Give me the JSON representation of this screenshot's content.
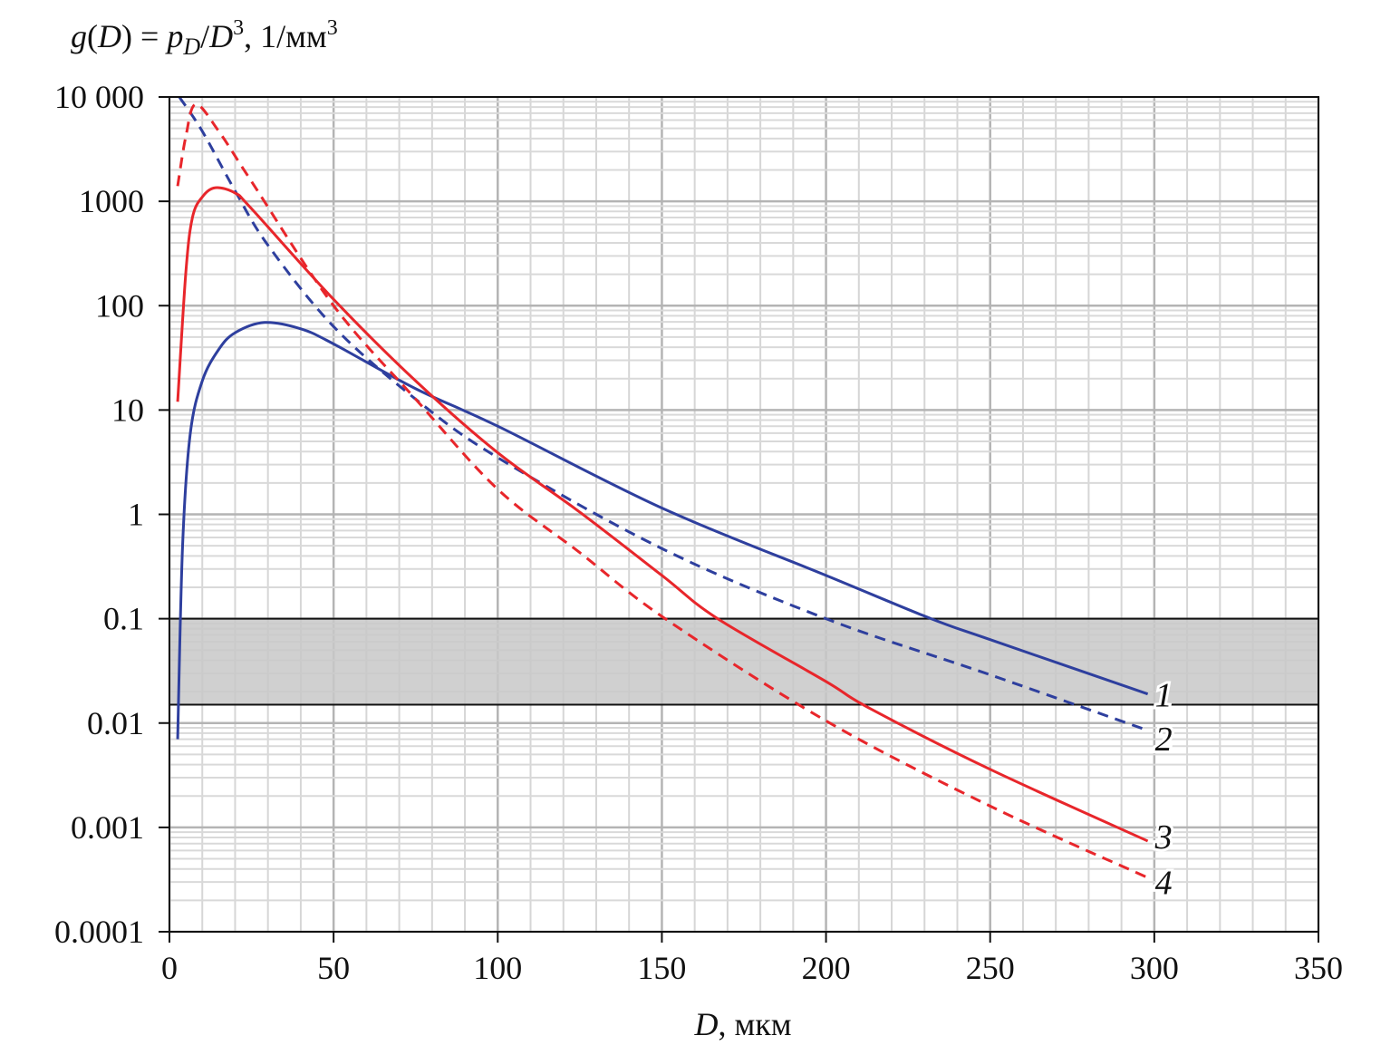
{
  "chart_data": {
    "type": "line",
    "title": "",
    "ylabel": "g(D) = p_D/D^3, 1/мм^3",
    "ylabel_parts": {
      "g": "g",
      "open": "(",
      "D": "D",
      "close": ")",
      "eq": " = ",
      "p": "p",
      "sub": "D",
      "slash": "/",
      "D2": "D",
      "sup": "3",
      "unit": ", 1/мм",
      "unit_sup": "3"
    },
    "xlabel": "D, мкм",
    "xlabel_parts": {
      "var": "D",
      "unit": ", мкм"
    },
    "xlim": [
      0,
      350
    ],
    "ylim": [
      0.0001,
      10000
    ],
    "yscale": "log",
    "grid": true,
    "x_ticks": [
      "0",
      "50",
      "100",
      "150",
      "200",
      "250",
      "300",
      "350"
    ],
    "y_ticks": [
      "0.0001",
      "0.001",
      "0.01",
      "0.1",
      "1",
      "10",
      "100",
      "1000",
      "10 000"
    ],
    "shaded_band": {
      "y_min": 0.015,
      "y_max": 0.1,
      "color": "#c8c8c8"
    },
    "series": [
      {
        "name": "1",
        "color": "#2e3f9e",
        "dash": false,
        "x": [
          2.5,
          4,
          6.3,
          10,
          15,
          20,
          29,
          40,
          50,
          75,
          100,
          150,
          200,
          232,
          250,
          298
        ],
        "y": [
          0.007,
          0.5,
          5.8,
          19,
          38,
          55,
          69,
          60,
          43,
          16,
          7,
          1.15,
          0.26,
          0.1,
          0.063,
          0.019
        ]
      },
      {
        "name": "2",
        "color": "#2e3f9e",
        "dash": true,
        "x": [
          3,
          10,
          20,
          30,
          50,
          75,
          100,
          150,
          200,
          250,
          298
        ],
        "y": [
          10000,
          4700,
          1260,
          380,
          63,
          12.7,
          3.5,
          0.47,
          0.1,
          0.029,
          0.0085
        ]
      },
      {
        "name": "3",
        "color": "#e8262b",
        "dash": false,
        "x": [
          2.5,
          5,
          7,
          10,
          14,
          20,
          25,
          50,
          75,
          100,
          125,
          150,
          167,
          200,
          213,
          250,
          298
        ],
        "y": [
          12,
          210,
          700,
          1100,
          1350,
          1200,
          850,
          115,
          19,
          3.9,
          1.05,
          0.26,
          0.1,
          0.025,
          0.014,
          0.0036,
          0.00074
        ]
      },
      {
        "name": "4",
        "color": "#e8262b",
        "dash": true,
        "x": [
          2.5,
          5,
          8,
          15,
          25,
          50,
          75,
          100,
          125,
          151,
          200,
          250,
          298
        ],
        "y": [
          1400,
          4200,
          8500,
          4700,
          1550,
          100,
          12.7,
          1.74,
          0.43,
          0.1,
          0.0105,
          0.0016,
          0.00033
        ]
      }
    ]
  }
}
